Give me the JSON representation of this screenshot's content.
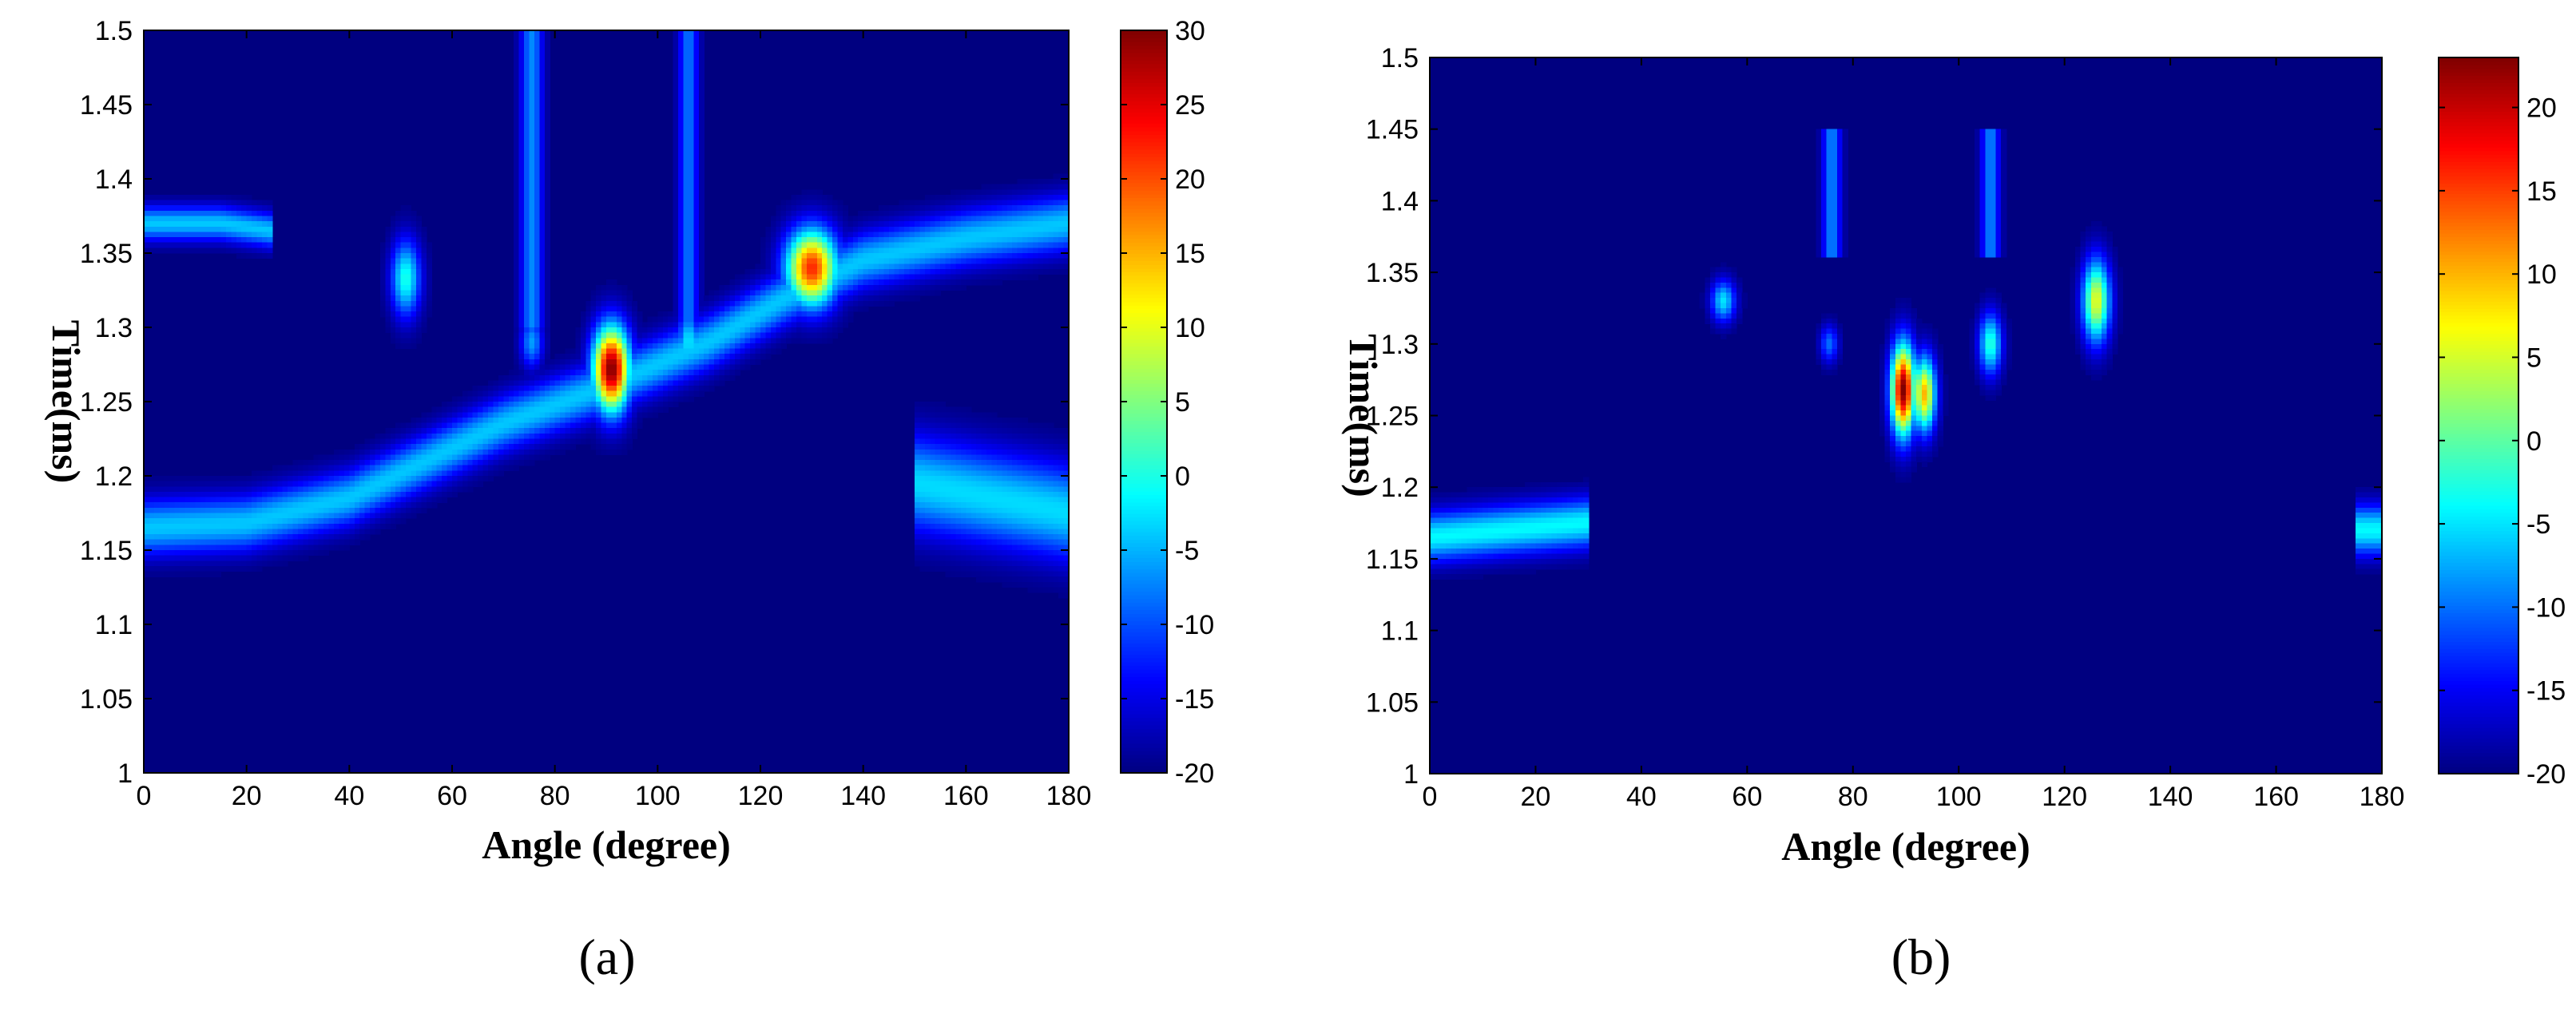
{
  "chart_data": [
    {
      "type": "heatmap",
      "panel_label": "(a)",
      "xlabel": "Angle (degree)",
      "ylabel": "Time(ms)",
      "xlim": [
        0,
        180
      ],
      "ylim": [
        1,
        1.5
      ],
      "xticks": [
        0,
        20,
        40,
        60,
        80,
        100,
        120,
        140,
        160,
        180
      ],
      "yticks": [
        1,
        1.05,
        1.1,
        1.15,
        1.2,
        1.25,
        1.3,
        1.35,
        1.4,
        1.45,
        1.5
      ],
      "colorbar": {
        "min": -20,
        "max": 30,
        "ticks": [
          -20,
          -15,
          -10,
          -5,
          0,
          5,
          10,
          15,
          20,
          25,
          30
        ],
        "colormap": "jet"
      },
      "background_level": -20,
      "features": [
        {
          "kind": "curve",
          "level": -4,
          "points": [
            [
              0,
              1.165
            ],
            [
              20,
              1.168
            ],
            [
              40,
              1.185
            ],
            [
              55,
              1.21
            ],
            [
              70,
              1.235
            ],
            [
              90,
              1.26
            ],
            [
              110,
              1.29
            ],
            [
              125,
              1.32
            ],
            [
              140,
              1.345
            ],
            [
              160,
              1.36
            ],
            [
              180,
              1.37
            ]
          ],
          "dt": 0.013
        },
        {
          "kind": "curve",
          "level": -4,
          "points": [
            [
              0,
              1.37
            ],
            [
              15,
              1.37
            ],
            [
              25,
              1.365
            ]
          ],
          "dt": 0.008
        },
        {
          "kind": "curve",
          "level": -3,
          "points": [
            [
              150,
              1.195
            ],
            [
              165,
              1.185
            ],
            [
              180,
              1.175
            ]
          ],
          "dt": 0.022
        },
        {
          "kind": "blob",
          "x": 91,
          "t": 1.272,
          "dx": 2.5,
          "dt": 0.02,
          "level": 30
        },
        {
          "kind": "blob",
          "x": 130,
          "t": 1.34,
          "dx": 3.5,
          "dt": 0.018,
          "level": 22
        },
        {
          "kind": "blob",
          "x": 51,
          "t": 1.333,
          "dx": 2,
          "dt": 0.018,
          "level": 0
        },
        {
          "kind": "blob",
          "x": 106,
          "t": 1.29,
          "dx": 1.5,
          "dt": 0.015,
          "level": -2
        },
        {
          "kind": "blob",
          "x": 75.5,
          "t": 1.29,
          "dx": 1.5,
          "dt": 0.012,
          "level": -6
        },
        {
          "kind": "vline",
          "x": 75.5,
          "t0": 1.3,
          "t1": 1.5,
          "dx": 1.5,
          "level": -7
        },
        {
          "kind": "vline",
          "x": 106,
          "t0": 1.3,
          "t1": 1.5,
          "dx": 1.3,
          "level": -8
        }
      ]
    },
    {
      "type": "heatmap",
      "panel_label": "(b)",
      "xlabel": "Angle (degree)",
      "ylabel": "Time(ms)",
      "xlim": [
        0,
        180
      ],
      "ylim": [
        1,
        1.5
      ],
      "xticks": [
        0,
        20,
        40,
        60,
        80,
        100,
        120,
        140,
        160,
        180
      ],
      "yticks": [
        1,
        1.05,
        1.1,
        1.15,
        1.2,
        1.25,
        1.3,
        1.35,
        1.4,
        1.45,
        1.5
      ],
      "colorbar": {
        "min": -20,
        "max": 23,
        "ticks": [
          -20,
          -15,
          -10,
          -5,
          0,
          5,
          10,
          15,
          20
        ],
        "colormap": "jet"
      },
      "background_level": -20,
      "features": [
        {
          "kind": "curve",
          "level": -4,
          "points": [
            [
              0,
              1.165
            ],
            [
              15,
              1.17
            ],
            [
              30,
              1.175
            ]
          ],
          "dt": 0.012
        },
        {
          "kind": "curve",
          "level": -4,
          "points": [
            [
              175,
              1.17
            ],
            [
              180,
              1.17
            ]
          ],
          "dt": 0.012
        },
        {
          "kind": "blob",
          "x": 89.5,
          "t": 1.268,
          "dx": 1.6,
          "dt": 0.022,
          "level": 23
        },
        {
          "kind": "blob",
          "x": 93.5,
          "t": 1.265,
          "dx": 1.5,
          "dt": 0.018,
          "level": 10
        },
        {
          "kind": "blob",
          "x": 126,
          "t": 1.33,
          "dx": 1.8,
          "dt": 0.02,
          "level": 6
        },
        {
          "kind": "blob",
          "x": 106,
          "t": 1.3,
          "dx": 1.5,
          "dt": 0.015,
          "level": -2
        },
        {
          "kind": "blob",
          "x": 55.5,
          "t": 1.33,
          "dx": 1.6,
          "dt": 0.01,
          "level": -5
        },
        {
          "kind": "blob",
          "x": 75.5,
          "t": 1.3,
          "dx": 1.2,
          "dt": 0.009,
          "level": -10
        },
        {
          "kind": "vline",
          "x": 76,
          "t0": 1.36,
          "t1": 1.45,
          "dx": 1.2,
          "level": -9
        },
        {
          "kind": "vline",
          "x": 106,
          "t0": 1.36,
          "t1": 1.45,
          "dx": 1.2,
          "level": -9
        }
      ]
    }
  ]
}
